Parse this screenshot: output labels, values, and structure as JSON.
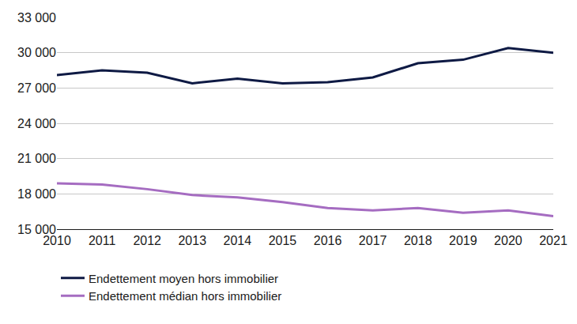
{
  "chart_data": {
    "type": "line",
    "x": [
      2010,
      2011,
      2012,
      2013,
      2014,
      2015,
      2016,
      2017,
      2018,
      2019,
      2020,
      2021
    ],
    "xlim": [
      2010,
      2021
    ],
    "xticks": [
      2010,
      2011,
      2012,
      2013,
      2014,
      2015,
      2016,
      2017,
      2018,
      2019,
      2020,
      2021
    ],
    "ylim": [
      15000,
      33000
    ],
    "yticks": [
      {
        "value": 15000,
        "label": "15 000"
      },
      {
        "value": 18000,
        "label": "18 000"
      },
      {
        "value": 21000,
        "label": "21 000"
      },
      {
        "value": 24000,
        "label": "24 000"
      },
      {
        "value": 27000,
        "label": "27 000"
      },
      {
        "value": 30000,
        "label": "30 000"
      },
      {
        "value": 33000,
        "label": "33 000"
      }
    ],
    "grid": true,
    "legend": "bottom",
    "series": [
      {
        "name": "Endettement moyen hors immobilier",
        "color": "#0e1a44",
        "values": [
          28100,
          28500,
          28300,
          27400,
          27800,
          27400,
          27500,
          27900,
          29100,
          29400,
          30400,
          30000
        ]
      },
      {
        "name": "Endettement médian hors immobilier",
        "color": "#a56cc1",
        "values": [
          18900,
          18800,
          18400,
          17900,
          17700,
          17300,
          16800,
          16600,
          16800,
          16400,
          16600,
          16100
        ]
      }
    ]
  }
}
